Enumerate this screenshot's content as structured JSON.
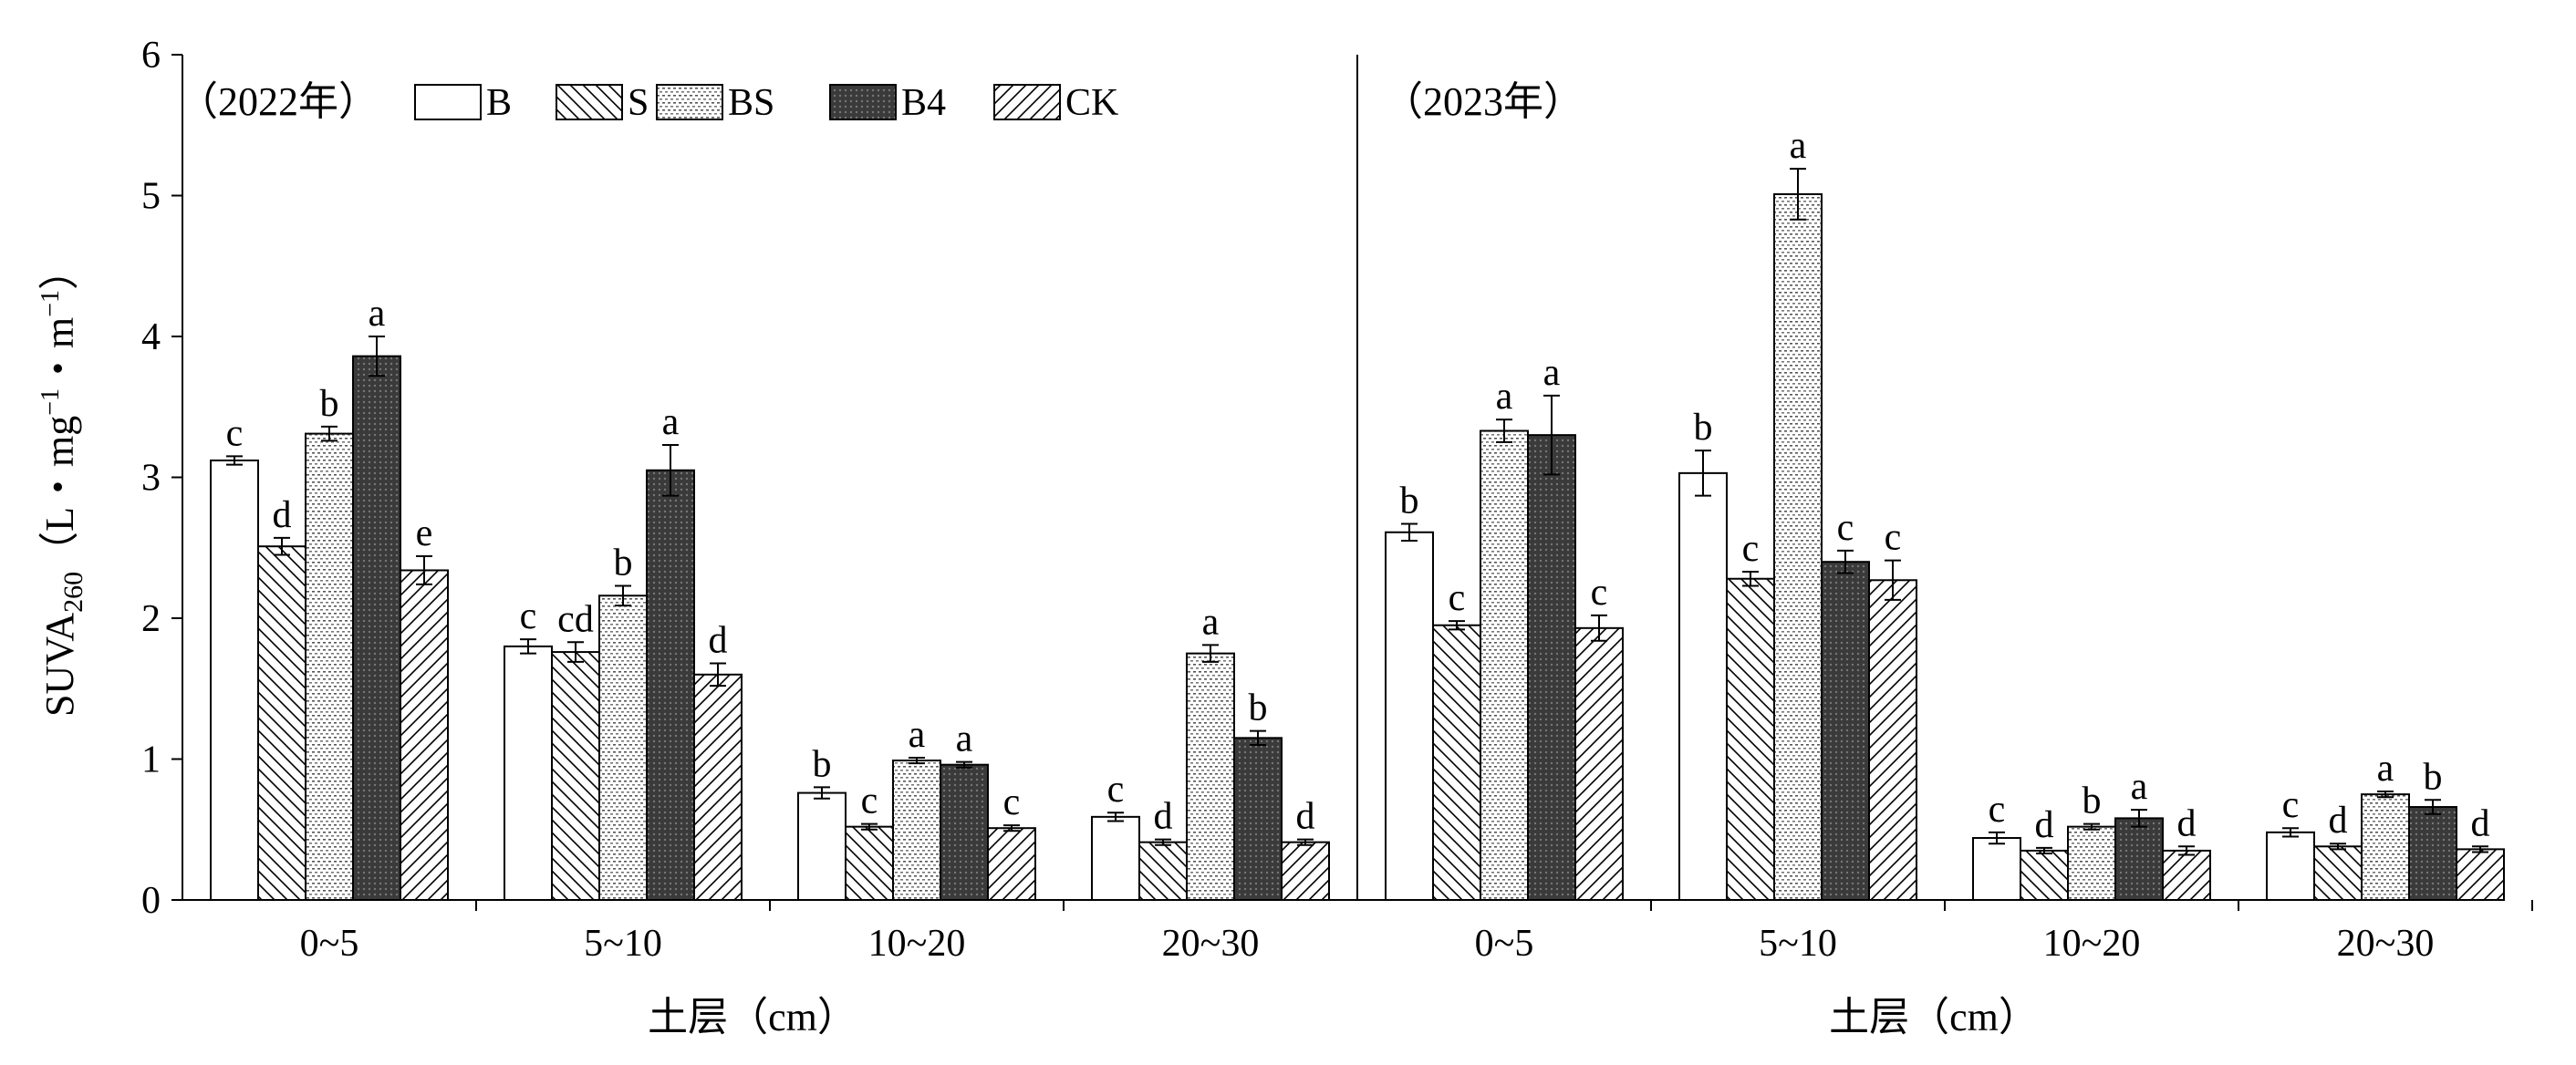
{
  "chart_data": {
    "type": "bar",
    "ylabel_main": "SUVA",
    "ylabel_sub": "260",
    "ylabel_unit_parts": [
      "（L・mg",
      "−1",
      "・m",
      "−1",
      "）"
    ],
    "ylim": [
      0,
      6
    ],
    "yticks": [
      "0",
      "1",
      "2",
      "3",
      "4",
      "5",
      "6"
    ],
    "xlabel": "土层（cm）",
    "grid": false,
    "legend_position": "top-left",
    "treatments": [
      "B",
      "S",
      "BS",
      "B4",
      "CK"
    ],
    "series_patterns": {
      "B": "plain",
      "S": "backslash-hatch",
      "BS": "dotted-horizontal",
      "B4": "dark-crosshatch",
      "CK": "forward-hatch"
    },
    "panels": [
      {
        "label": "（2022年）",
        "categories": [
          "0~5",
          "5~10",
          "10~20",
          "20~30"
        ],
        "series": [
          {
            "name": "B",
            "values": [
              3.12,
              1.8,
              0.76,
              0.59
            ],
            "errors": [
              0.03,
              0.05,
              0.04,
              0.03
            ],
            "letters": [
              "c",
              "c",
              "b",
              "c"
            ]
          },
          {
            "name": "S",
            "values": [
              2.51,
              1.76,
              0.52,
              0.41
            ],
            "errors": [
              0.06,
              0.07,
              0.02,
              0.02
            ],
            "letters": [
              "d",
              "cd",
              "c",
              "d"
            ]
          },
          {
            "name": "BS",
            "values": [
              3.31,
              2.16,
              0.99,
              1.75
            ],
            "errors": [
              0.05,
              0.07,
              0.02,
              0.06
            ],
            "letters": [
              "b",
              "b",
              "a",
              "a"
            ]
          },
          {
            "name": "B4",
            "values": [
              3.86,
              3.05,
              0.96,
              1.15
            ],
            "errors": [
              0.14,
              0.18,
              0.02,
              0.05
            ],
            "letters": [
              "a",
              "a",
              "a",
              "b"
            ]
          },
          {
            "name": "CK",
            "values": [
              2.34,
              1.6,
              0.51,
              0.41
            ],
            "errors": [
              0.1,
              0.08,
              0.02,
              0.02
            ],
            "letters": [
              "e",
              "d",
              "c",
              "d"
            ]
          }
        ]
      },
      {
        "label": "（2023年）",
        "categories": [
          "0~5",
          "5~10",
          "10~20",
          "20~30"
        ],
        "series": [
          {
            "name": "B",
            "values": [
              2.61,
              3.03,
              0.44,
              0.48
            ],
            "errors": [
              0.06,
              0.16,
              0.04,
              0.03
            ],
            "letters": [
              "b",
              "b",
              "c",
              "c"
            ]
          },
          {
            "name": "S",
            "values": [
              1.95,
              2.28,
              0.35,
              0.38
            ],
            "errors": [
              0.03,
              0.05,
              0.02,
              0.02
            ],
            "letters": [
              "c",
              "c",
              "d",
              "d"
            ]
          },
          {
            "name": "BS",
            "values": [
              3.33,
              5.01,
              0.52,
              0.75
            ],
            "errors": [
              0.08,
              0.18,
              0.02,
              0.02
            ],
            "letters": [
              "a",
              "a",
              "b",
              "a"
            ]
          },
          {
            "name": "B4",
            "values": [
              3.3,
              2.4,
              0.58,
              0.66
            ],
            "errors": [
              0.28,
              0.08,
              0.06,
              0.05
            ],
            "letters": [
              "a",
              "c",
              "a",
              "b"
            ]
          },
          {
            "name": "CK",
            "values": [
              1.93,
              2.27,
              0.35,
              0.36
            ],
            "errors": [
              0.09,
              0.14,
              0.03,
              0.02
            ],
            "letters": [
              "c",
              "c",
              "d",
              "d"
            ]
          }
        ]
      }
    ]
  }
}
